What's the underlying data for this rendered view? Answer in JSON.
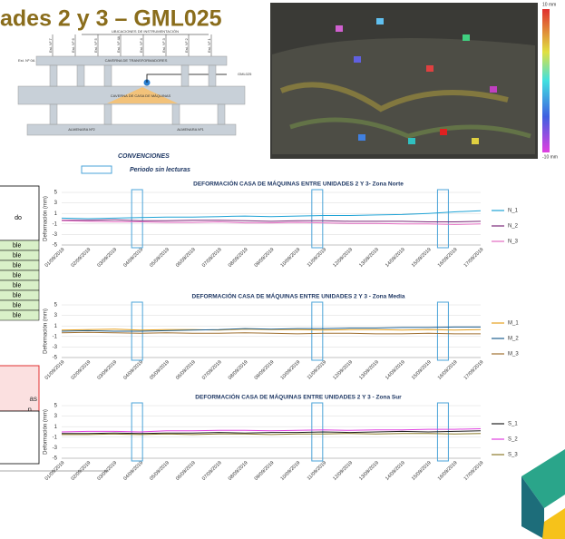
{
  "header": {
    "title": "ades 2 y 3 – GML025"
  },
  "diagram": {
    "heading": "UBICACIONES DE INSTRUMENTACIÓN",
    "stations": [
      "Est. Nº 7",
      "Est. Nº 6",
      "Est. Nº 5",
      "Est. Nº 4A",
      "Est. Nº 4",
      "Est. Nº 3",
      "Est. Nº 2",
      "Est. Nº 1"
    ],
    "station_left": "Est. Nº 0A",
    "upper_cavern": "CAVERNA DE TRANSFORMADORES",
    "lower_cavern": "CAVERNA DE CASA DE MÁQUINAS",
    "instrument": "GML025",
    "left_shaft": "ALMENARA Nº2",
    "right_shaft": "ALMENARA Nº1"
  },
  "conventions": {
    "title": "CONVENCIONES",
    "item": "Periodo sin lecturas"
  },
  "photo": {
    "scale_max": "10 mm",
    "scale_min": "-10 mm"
  },
  "table": {
    "header": "do",
    "rows": [
      "ble",
      "ble",
      "ble",
      "ble",
      "ble",
      "ble",
      "ble",
      "ble"
    ],
    "alert": [
      "as",
      "n"
    ]
  },
  "chart_data": [
    {
      "type": "line",
      "title": "DEFORMACIÓN CASA DE MÁQUINAS ENTRE UNIDADES 2 Y 3- Zona Norte",
      "ylabel": "Deformación (mm)",
      "x": [
        "01/09/2019",
        "02/09/2019",
        "03/09/2019",
        "04/09/2019",
        "05/09/2019",
        "06/09/2019",
        "07/09/2019",
        "08/09/2019",
        "09/09/2019",
        "10/09/2019",
        "11/09/2019",
        "12/09/2019",
        "13/09/2019",
        "14/09/2019",
        "15/09/2019",
        "16/09/2019",
        "17/09/2019"
      ],
      "ylim": [
        -5,
        5
      ],
      "yticks": [
        5,
        3,
        1,
        -1,
        -3,
        -5
      ],
      "grid": true,
      "series": [
        {
          "name": "N_1",
          "color": "#1fa3d6",
          "values": [
            0.1,
            0,
            0.1,
            0.2,
            0.3,
            0.3,
            0.4,
            0.5,
            0.4,
            0.5,
            0.6,
            0.6,
            0.7,
            0.8,
            1.0,
            1.3,
            1.5
          ]
        },
        {
          "name": "N_2",
          "color": "#7b2a7a",
          "values": [
            -0.3,
            -0.3,
            -0.2,
            -0.4,
            -0.4,
            -0.3,
            -0.3,
            -0.4,
            -0.5,
            -0.4,
            -0.4,
            -0.5,
            -0.5,
            -0.5,
            -0.6,
            -0.6,
            -0.5
          ]
        },
        {
          "name": "N_3",
          "color": "#e36bc1",
          "values": [
            -0.4,
            -0.5,
            -0.6,
            -0.6,
            -0.7,
            -0.7,
            -0.6,
            -0.8,
            -0.8,
            -0.7,
            -0.8,
            -0.9,
            -0.9,
            -1.0,
            -1.0,
            -1.1,
            -1.0
          ]
        }
      ]
    },
    {
      "type": "line",
      "title": "DEFORMACIÓN CASA DE MÁQUINAS ENTRE UNIDADES 2 Y 3 - Zona Media",
      "ylabel": "Deformación (mm)",
      "x": [
        "01/09/2019",
        "02/09/2019",
        "03/09/2019",
        "04/09/2019",
        "05/09/2019",
        "06/09/2019",
        "07/09/2019",
        "08/09/2019",
        "09/09/2019",
        "10/09/2019",
        "11/09/2019",
        "12/09/2019",
        "13/09/2019",
        "14/09/2019",
        "15/09/2019",
        "16/09/2019",
        "17/09/2019"
      ],
      "ylim": [
        -5,
        5
      ],
      "yticks": [
        5,
        3,
        1,
        -1,
        -3,
        -5
      ],
      "grid": true,
      "series": [
        {
          "name": "M_1",
          "color": "#e6a020",
          "values": [
            0.2,
            0.3,
            0.4,
            0.2,
            0.3,
            0.3,
            0.2,
            0.4,
            0.3,
            0.3,
            0.2,
            0.3,
            0.3,
            0.2,
            0.3,
            0.2,
            0.3
          ]
        },
        {
          "name": "M_2",
          "color": "#1f5f8f",
          "values": [
            0,
            0.1,
            0,
            0,
            0.1,
            0.2,
            0.3,
            0.5,
            0.4,
            0.5,
            0.5,
            0.6,
            0.6,
            0.7,
            0.7,
            0.8,
            0.8
          ]
        },
        {
          "name": "M_3",
          "color": "#a07030",
          "values": [
            -0.3,
            -0.2,
            -0.3,
            -0.4,
            -0.3,
            -0.4,
            -0.4,
            -0.3,
            -0.4,
            -0.5,
            -0.4,
            -0.4,
            -0.5,
            -0.5,
            -0.4,
            -0.5,
            -0.5
          ]
        }
      ]
    },
    {
      "type": "line",
      "title": "DEFORMACIÓN CASA DE MÁQUINAS ENTRE UNIDADES 2 Y 3 - Zona Sur",
      "ylabel": "Deformación (mm)",
      "x": [
        "01/09/2019",
        "02/09/2019",
        "03/09/2019",
        "04/09/2019",
        "05/09/2019",
        "06/09/2019",
        "07/09/2019",
        "08/09/2019",
        "09/09/2019",
        "10/09/2019",
        "11/09/2019",
        "12/09/2019",
        "13/09/2019",
        "14/09/2019",
        "15/09/2019",
        "16/09/2019",
        "17/09/2019"
      ],
      "ylim": [
        -5,
        5
      ],
      "yticks": [
        5,
        3,
        1,
        -1,
        -3,
        -5
      ],
      "grid": true,
      "series": [
        {
          "name": "S_1",
          "color": "#222222",
          "values": [
            -0.3,
            -0.3,
            -0.2,
            -0.3,
            -0.2,
            -0.2,
            -0.1,
            -0.2,
            -0.1,
            -0.1,
            0,
            -0.1,
            0,
            0.1,
            0,
            0.1,
            0.2
          ]
        },
        {
          "name": "S_2",
          "color": "#e040e0",
          "values": [
            0,
            0.1,
            0.1,
            0,
            0.2,
            0.2,
            0.3,
            0.3,
            0.2,
            0.3,
            0.4,
            0.3,
            0.4,
            0.4,
            0.5,
            0.5,
            0.6
          ]
        },
        {
          "name": "S_3",
          "color": "#8c7a2a",
          "values": [
            -0.5,
            -0.5,
            -0.4,
            -0.5,
            -0.4,
            -0.5,
            -0.4,
            -0.4,
            -0.5,
            -0.4,
            -0.4,
            -0.3,
            -0.4,
            -0.3,
            -0.3,
            -0.4,
            -0.3
          ]
        }
      ]
    }
  ]
}
